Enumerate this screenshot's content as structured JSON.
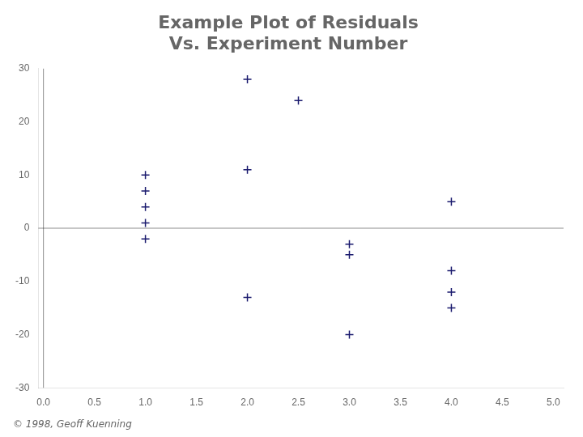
{
  "chart_data": {
    "type": "scatter",
    "title": "Example Plot of Residuals",
    "subtitle": "Vs. Experiment Number",
    "annotations": [
      "© 1998, Geoff Kuenning"
    ],
    "x": [
      1.0,
      1.0,
      1.0,
      1.0,
      1.0,
      2.0,
      2.0,
      2.5,
      3.0,
      3.0,
      4.0,
      4.0,
      4.0,
      4.0,
      2.0,
      3.0
    ],
    "values": [
      10,
      7,
      4,
      1,
      -2,
      28,
      11,
      24,
      -3,
      -5,
      5,
      -8,
      -12,
      -15,
      -13,
      -20
    ],
    "color": "#1a1a6e",
    "marker": "plus",
    "xlim": [
      -0.05,
      5.1
    ],
    "xticks": [
      {
        "value": 0,
        "label": "0.0"
      },
      0.5,
      {
        "value": 1,
        "label": "1.0"
      },
      1.5,
      {
        "value": 2,
        "label": "2.0"
      },
      2.5,
      {
        "value": 3,
        "label": "3.0"
      },
      3.5,
      {
        "value": 4,
        "label": "4.0"
      },
      4.5,
      {
        "value": 5,
        "label": "5.0"
      }
    ],
    "ylim": [
      -30,
      30
    ],
    "yticks": [
      -30,
      -20,
      -10,
      0,
      10,
      20,
      30
    ],
    "grid": false
  }
}
